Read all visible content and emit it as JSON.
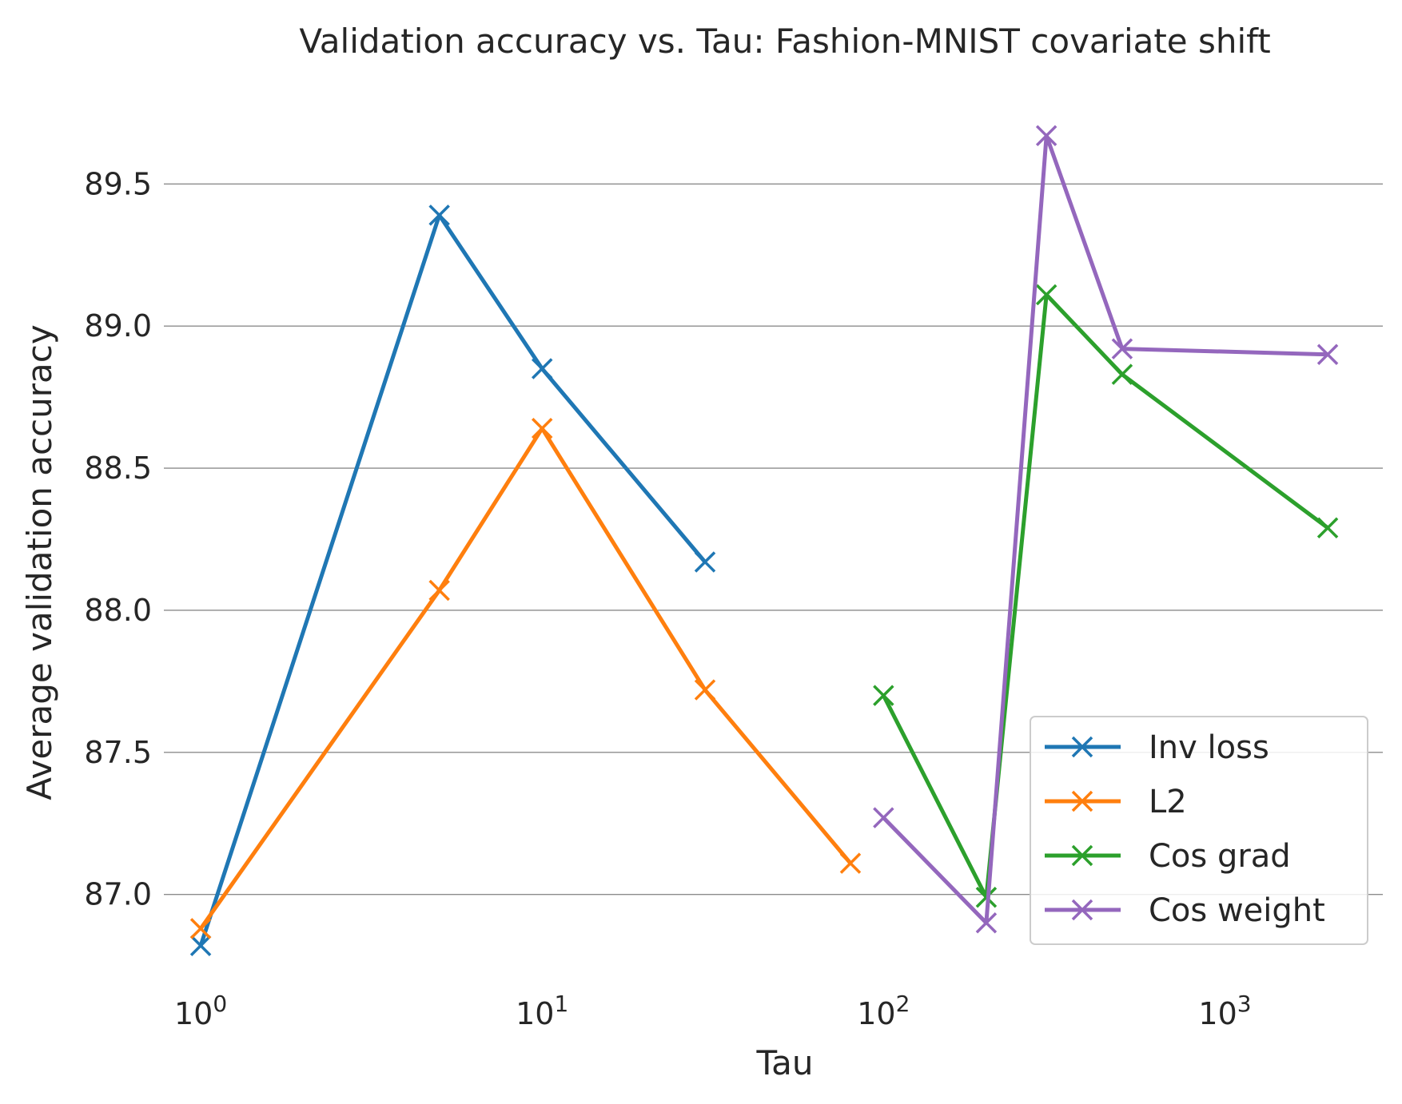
{
  "chart_data": {
    "type": "line",
    "title": "Validation accuracy vs. Tau: Fashion-MNIST covariate shift",
    "xlabel": "Tau",
    "ylabel": "Average validation accuracy",
    "xscale": "log",
    "xlim": [
      0.78,
      2900
    ],
    "ylim": [
      86.69,
      89.81
    ],
    "x_ticks": [
      {
        "value": 1,
        "base": "10",
        "exp": "0"
      },
      {
        "value": 10,
        "base": "10",
        "exp": "1"
      },
      {
        "value": 100,
        "base": "10",
        "exp": "2"
      },
      {
        "value": 1000,
        "base": "10",
        "exp": "3"
      }
    ],
    "y_ticks": [
      {
        "value": 87.0,
        "label": "87.0"
      },
      {
        "value": 87.5,
        "label": "87.5"
      },
      {
        "value": 88.0,
        "label": "88.0"
      },
      {
        "value": 88.5,
        "label": "88.5"
      },
      {
        "value": 89.0,
        "label": "89.0"
      },
      {
        "value": 89.5,
        "label": "89.5"
      }
    ],
    "grid": "horizontal",
    "legend_position": "lower-right",
    "series": [
      {
        "name": "Inv loss",
        "color": "#1f77b4",
        "marker": "x",
        "x": [
          1,
          5,
          10,
          30
        ],
        "y": [
          86.82,
          89.39,
          88.85,
          88.17
        ]
      },
      {
        "name": "L2",
        "color": "#ff7f0e",
        "marker": "x",
        "x": [
          1,
          5,
          10,
          30,
          80
        ],
        "y": [
          86.88,
          88.07,
          88.64,
          87.72,
          87.11
        ]
      },
      {
        "name": "Cos grad",
        "color": "#2ca02c",
        "marker": "x",
        "x": [
          100,
          200,
          300,
          500,
          2000
        ],
        "y": [
          87.7,
          86.99,
          89.11,
          88.83,
          88.29
        ]
      },
      {
        "name": "Cos weight",
        "color": "#9467bd",
        "marker": "x",
        "x": [
          100,
          200,
          300,
          500,
          2000
        ],
        "y": [
          87.27,
          86.9,
          89.67,
          88.92,
          88.9
        ]
      }
    ]
  }
}
